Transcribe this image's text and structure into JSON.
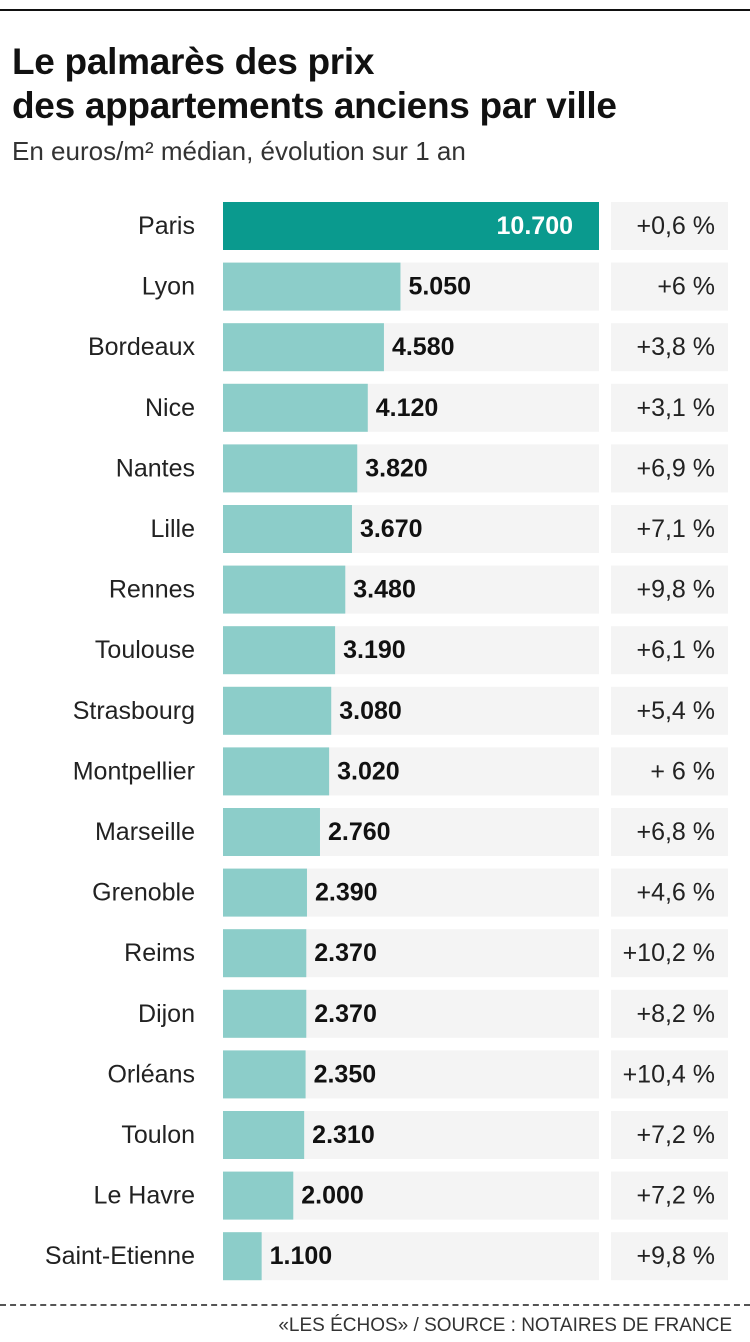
{
  "title_line1": "Le palmarès des prix",
  "title_line2": "des appartements anciens par ville",
  "subtitle": "En euros/m² médian, évolution sur 1 an",
  "source": "«LES ÉCHOS» / SOURCE :  NOTAIRES DE FRANCE",
  "colors": {
    "highlight_bar": "#0a9a8e",
    "bar": "#8ccdc9",
    "bar_track": "#f4f4f4",
    "evo_box": "#f4f4f4"
  },
  "chart_data": {
    "type": "bar",
    "orientation": "horizontal",
    "categories": [
      "Paris",
      "Lyon",
      "Bordeaux",
      "Nice",
      "Nantes",
      "Lille",
      "Rennes",
      "Toulouse",
      "Strasbourg",
      "Montpellier",
      "Marseille",
      "Grenoble",
      "Reims",
      "Dijon",
      "Orléans",
      "Toulon",
      "Le Havre",
      "Saint-Etienne"
    ],
    "values": [
      10700,
      5050,
      4580,
      4120,
      3820,
      3670,
      3480,
      3190,
      3080,
      3020,
      2760,
      2390,
      2370,
      2370,
      2350,
      2310,
      2000,
      1100
    ],
    "value_labels": [
      "10.700",
      "5.050",
      "4.580",
      "4.120",
      "3.820",
      "3.670",
      "3.480",
      "3.190",
      "3.080",
      "3.020",
      "2.760",
      "2.390",
      "2.370",
      "2.370",
      "2.350",
      "2.310",
      "2.000",
      "1.100"
    ],
    "evolution_labels": [
      "+0,6 %",
      "+6 %",
      "+3,8 %",
      "+3,1 %",
      "+6,9 %",
      "+7,1 %",
      "+9,8 %",
      "+6,1 %",
      "+5,4 %",
      "+ 6 %",
      "+6,8 %",
      "+4,6 %",
      "+10,2 %",
      "+8,2 %",
      "+10,4 %",
      "+7,2 %",
      "+7,2 %",
      "+9,8 %"
    ],
    "evolution_values": [
      0.6,
      6,
      3.8,
      3.1,
      6.9,
      7.1,
      9.8,
      6.1,
      5.4,
      6,
      6.8,
      4.6,
      10.2,
      8.2,
      10.4,
      7.2,
      7.2,
      9.8
    ],
    "highlighted_category": "Paris",
    "xlim": [
      0,
      10700
    ],
    "grid": false,
    "legend": "none"
  }
}
